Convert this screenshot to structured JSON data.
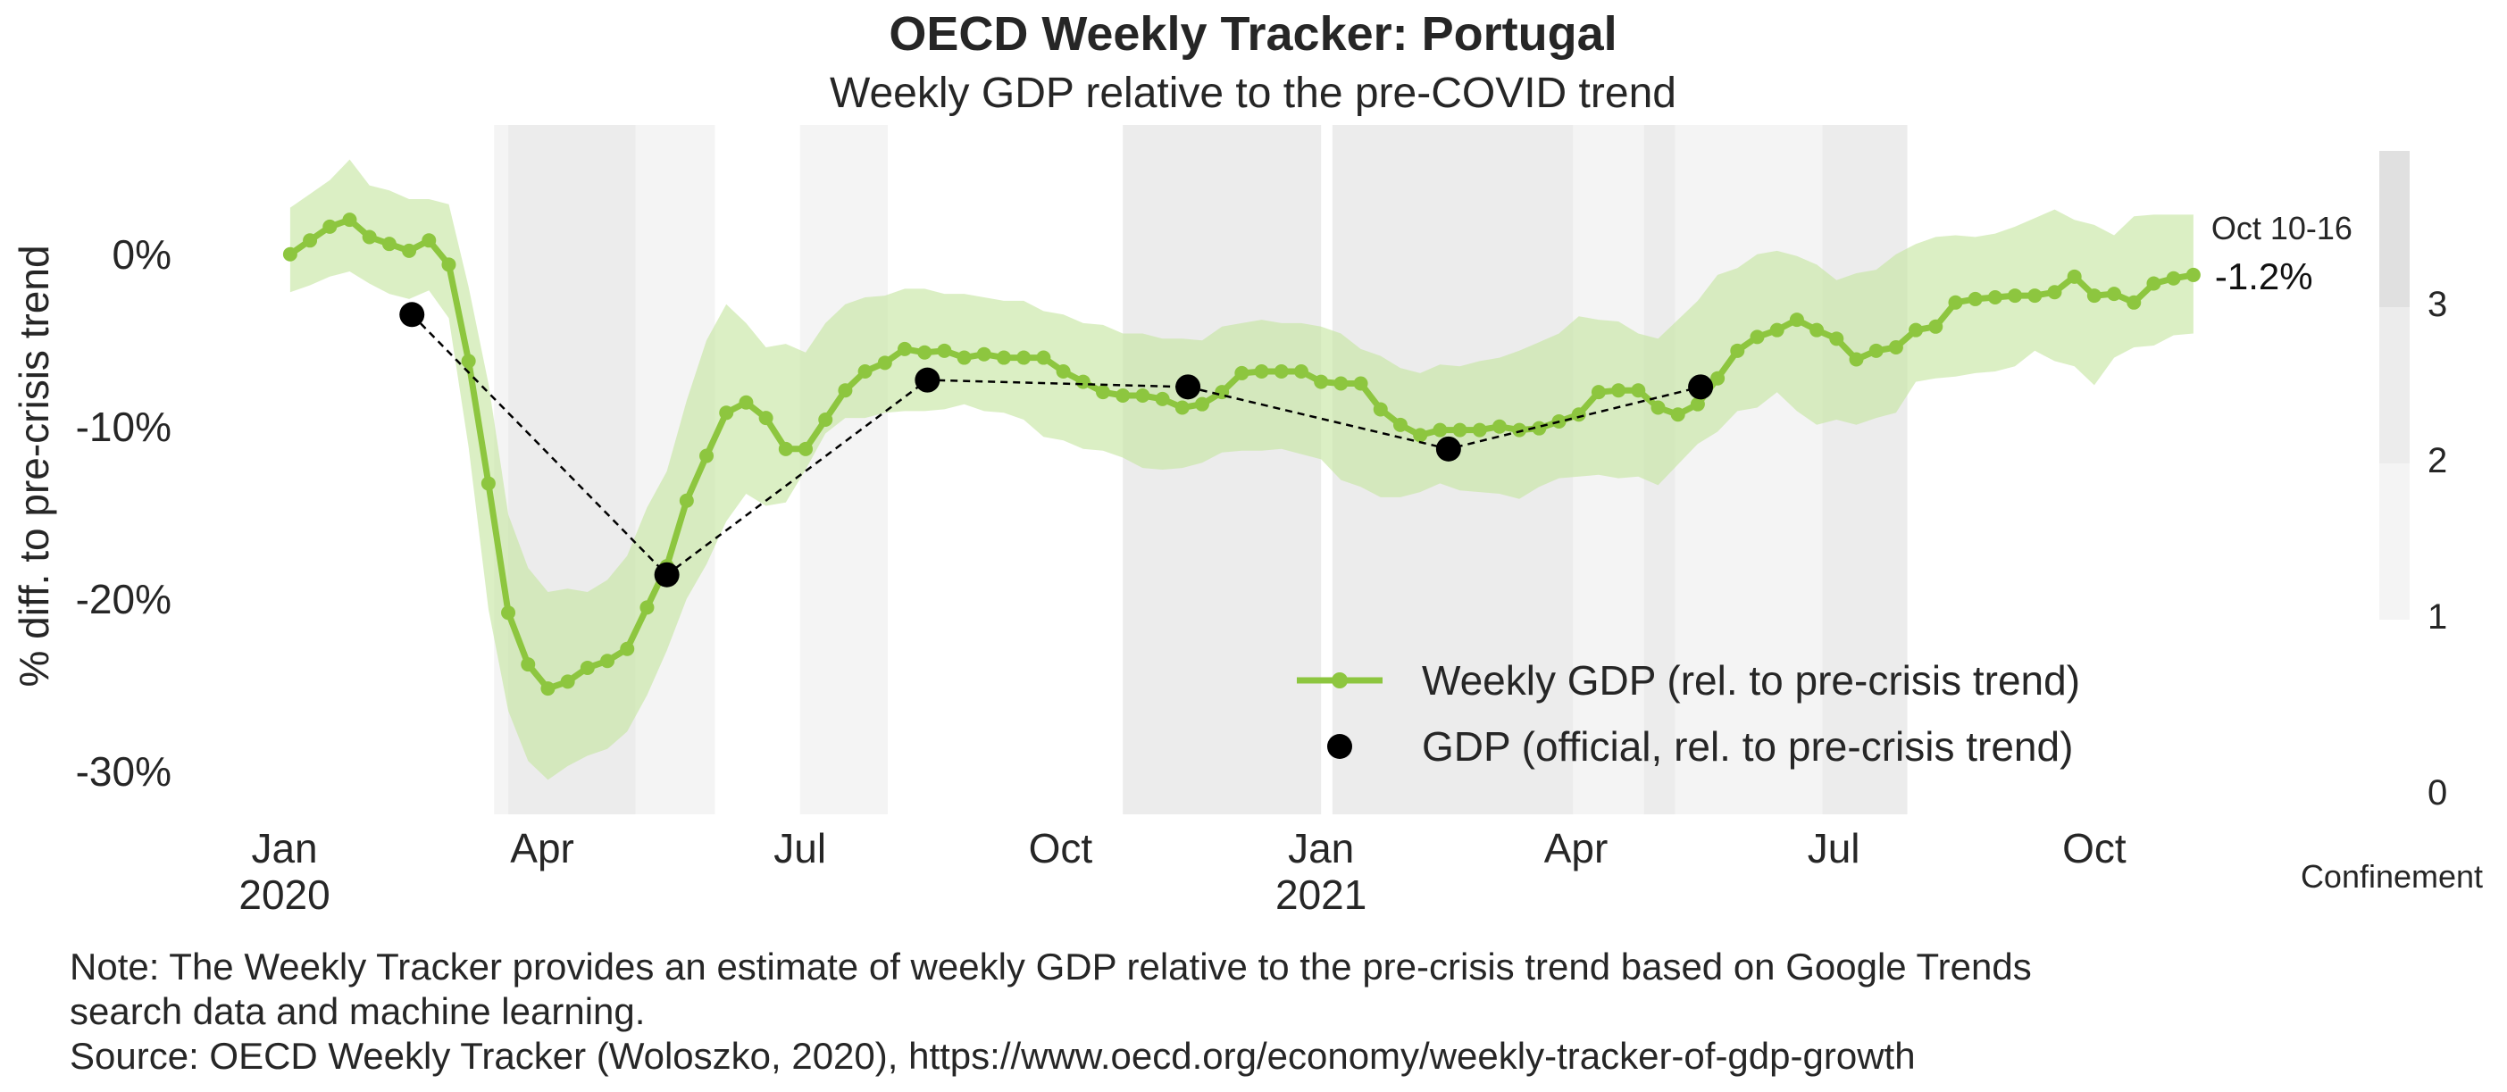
{
  "chart_data": {
    "type": "line",
    "title": "OECD Weekly Tracker: Portugal",
    "subtitle": "Weekly GDP relative to the pre-COVID trend",
    "ylabel": "% diff. to pre-crisis trend",
    "ylim": [
      -32.5,
      7.5
    ],
    "yticks": [
      0,
      -10,
      -20,
      -30
    ],
    "ytick_labels": [
      "0%",
      "-10%",
      "-20%",
      "-30%"
    ],
    "xlim": [
      "2019-12-23",
      "2021-10-31"
    ],
    "xticks": [
      {
        "date": "2020-01-01",
        "label": "Jan",
        "label2": "2020"
      },
      {
        "date": "2020-04-01",
        "label": "Apr",
        "label2": ""
      },
      {
        "date": "2020-07-01",
        "label": "Jul",
        "label2": ""
      },
      {
        "date": "2020-10-01",
        "label": "Oct",
        "label2": ""
      },
      {
        "date": "2021-01-01",
        "label": "Jan",
        "label2": "2021"
      },
      {
        "date": "2021-04-01",
        "label": "Apr",
        "label2": ""
      },
      {
        "date": "2021-07-01",
        "label": "Jul",
        "label2": ""
      },
      {
        "date": "2021-10-01",
        "label": "Oct",
        "label2": ""
      }
    ],
    "grid": false,
    "legend_position": "lower-right",
    "series": [
      {
        "name": "Weekly GDP (rel. to pre-crisis trend)",
        "color": "#8dc63f",
        "band_color": "#c8e6a5",
        "start_date": "2020-01-03",
        "step_days": 7,
        "values": [
          0.0,
          0.8,
          1.6,
          2.0,
          1.0,
          0.6,
          0.2,
          0.8,
          -0.6,
          -6.2,
          -13.3,
          -20.8,
          -23.8,
          -25.2,
          -24.8,
          -24.0,
          -23.6,
          -22.9,
          -20.5,
          -18.1,
          -14.3,
          -11.7,
          -9.2,
          -8.6,
          -9.5,
          -11.3,
          -11.3,
          -9.6,
          -7.9,
          -6.8,
          -6.3,
          -5.5,
          -5.7,
          -5.6,
          -6.0,
          -5.8,
          -6.0,
          -6.0,
          -6.0,
          -6.8,
          -7.4,
          -8.0,
          -8.2,
          -8.2,
          -8.4,
          -8.9,
          -8.7,
          -8.0,
          -6.9,
          -6.8,
          -6.8,
          -6.8,
          -7.4,
          -7.5,
          -7.5,
          -9.0,
          -9.9,
          -10.5,
          -10.2,
          -10.2,
          -10.2,
          -10.0,
          -10.2,
          -10.1,
          -9.7,
          -9.3,
          -8.0,
          -7.9,
          -7.9,
          -8.9,
          -9.3,
          -8.7,
          -7.2,
          -5.6,
          -4.8,
          -4.4,
          -3.8,
          -4.4,
          -4.9,
          -6.1,
          -5.6,
          -5.4,
          -4.4,
          -4.2,
          -2.8,
          -2.6,
          -2.5,
          -2.4,
          -2.4,
          -2.2,
          -1.3,
          -2.4,
          -2.3,
          -2.8,
          -1.7,
          -1.4,
          -1.2
        ],
        "band_upper": [
          2.7,
          3.5,
          4.3,
          5.5,
          4.0,
          3.7,
          3.2,
          3.2,
          2.9,
          -1.9,
          -7.5,
          -15.1,
          -18.2,
          -19.6,
          -19.4,
          -19.6,
          -18.9,
          -17.5,
          -14.7,
          -12.6,
          -8.5,
          -5.0,
          -2.9,
          -4.0,
          -5.4,
          -5.2,
          -5.7,
          -4.0,
          -2.9,
          -2.5,
          -2.4,
          -2.0,
          -2.0,
          -2.3,
          -2.3,
          -2.5,
          -2.7,
          -2.7,
          -3.3,
          -3.5,
          -4.0,
          -4.1,
          -4.6,
          -4.6,
          -4.9,
          -4.9,
          -5.0,
          -4.2,
          -4.0,
          -3.8,
          -4.0,
          -4.0,
          -4.2,
          -4.6,
          -5.5,
          -5.9,
          -6.6,
          -6.9,
          -6.4,
          -6.5,
          -6.2,
          -6.0,
          -5.6,
          -5.1,
          -4.6,
          -3.6,
          -3.8,
          -3.9,
          -4.6,
          -4.9,
          -3.8,
          -2.7,
          -1.2,
          -0.8,
          0.0,
          0.2,
          -0.1,
          -0.6,
          -1.5,
          -1.1,
          -0.9,
          0.0,
          0.6,
          1.0,
          1.1,
          1.0,
          1.2,
          1.6,
          2.1,
          2.6,
          2.0,
          1.7,
          1.1,
          2.2,
          2.3,
          2.3,
          2.3
        ],
        "band_lower": [
          -2.2,
          -1.8,
          -1.3,
          -1.0,
          -1.7,
          -2.3,
          -2.6,
          -2.1,
          -3.7,
          -11.2,
          -20.6,
          -26.5,
          -29.4,
          -30.5,
          -29.7,
          -29.1,
          -28.7,
          -27.7,
          -25.6,
          -23.0,
          -20.0,
          -18.0,
          -15.5,
          -13.9,
          -14.6,
          -14.4,
          -12.5,
          -10.4,
          -9.5,
          -9.5,
          -9.2,
          -9.1,
          -9.1,
          -9.0,
          -8.7,
          -9.1,
          -9.2,
          -9.6,
          -10.6,
          -10.8,
          -11.3,
          -11.4,
          -11.8,
          -12.4,
          -12.5,
          -12.4,
          -12.1,
          -11.5,
          -11.4,
          -11.4,
          -11.3,
          -11.6,
          -11.9,
          -13.1,
          -13.5,
          -14.1,
          -14.1,
          -13.8,
          -13.3,
          -13.7,
          -13.8,
          -13.9,
          -14.2,
          -13.5,
          -13.0,
          -12.9,
          -12.8,
          -13.0,
          -12.9,
          -13.4,
          -12.2,
          -11.0,
          -10.3,
          -9.1,
          -8.9,
          -8.0,
          -9.1,
          -9.9,
          -9.6,
          -9.9,
          -9.5,
          -9.2,
          -7.4,
          -7.2,
          -7.1,
          -6.9,
          -6.8,
          -6.5,
          -5.6,
          -6.2,
          -6.5,
          -7.6,
          -6.0,
          -5.4,
          -5.3,
          -4.7,
          -4.6
        ]
      },
      {
        "name": "GDP (official, rel. to pre-crisis trend)",
        "color": "#000000",
        "points": [
          {
            "date": "2020-02-15",
            "value": -3.5
          },
          {
            "date": "2020-05-15",
            "value": -18.6
          },
          {
            "date": "2020-08-15",
            "value": -7.3
          },
          {
            "date": "2020-11-15",
            "value": -7.7
          },
          {
            "date": "2021-02-15",
            "value": -11.3
          },
          {
            "date": "2021-05-15",
            "value": -7.7
          }
        ]
      }
    ],
    "last_point_annotation": {
      "date_label": "Oct 10-16",
      "value_label": "-1.2%"
    },
    "confinement": {
      "label": "Confinement",
      "tick_labels": [
        "0",
        "1",
        "2",
        "3"
      ],
      "colors": [
        "#ffffff",
        "#f4f4f4",
        "#ececec",
        "#e0e0e0"
      ],
      "periods": [
        {
          "start": "2020-03-15",
          "end": "2020-03-20",
          "level": 1
        },
        {
          "start": "2020-03-20",
          "end": "2020-05-04",
          "level": 2
        },
        {
          "start": "2020-05-04",
          "end": "2020-06-01",
          "level": 1
        },
        {
          "start": "2020-07-01",
          "end": "2020-08-01",
          "level": 1
        },
        {
          "start": "2020-10-23",
          "end": "2021-01-01",
          "level": 2
        },
        {
          "start": "2021-01-05",
          "end": "2021-03-31",
          "level": 2
        },
        {
          "start": "2021-03-31",
          "end": "2021-04-25",
          "level": 1
        },
        {
          "start": "2021-04-25",
          "end": "2021-05-06",
          "level": 2
        },
        {
          "start": "2021-05-06",
          "end": "2021-06-27",
          "level": 1
        },
        {
          "start": "2021-06-27",
          "end": "2021-07-27",
          "level": 2
        }
      ]
    }
  },
  "notes": {
    "line1": "Note: The Weekly Tracker provides an estimate of weekly GDP relative to the pre-crisis trend based on Google Trends",
    "line2": "search data and machine learning.",
    "line3": "Source: OECD Weekly Tracker (Woloszko, 2020), https://www.oecd.org/economy/weekly-tracker-of-gdp-growth"
  }
}
